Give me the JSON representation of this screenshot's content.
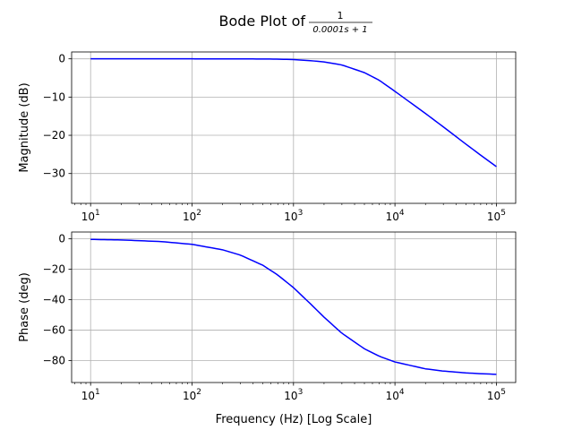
{
  "figure": {
    "title_prefix": "Bode Plot of",
    "title_fraction": {
      "numerator": "1",
      "denominator": "0.0001s + 1"
    }
  },
  "chart_data": [
    {
      "type": "line",
      "name": "magnitude",
      "xlabel": "",
      "ylabel": "Magnitude (dB)",
      "x_scale": "log",
      "xlim": [
        6.5,
        155000
      ],
      "ylim": [
        -37.8,
        1.8
      ],
      "xticks": [
        10,
        100,
        1000,
        10000,
        100000
      ],
      "xtick_labels": [
        {
          "base": "10",
          "exp": "1"
        },
        {
          "base": "10",
          "exp": "2"
        },
        {
          "base": "10",
          "exp": "3"
        },
        {
          "base": "10",
          "exp": "4"
        },
        {
          "base": "10",
          "exp": "5"
        }
      ],
      "yticks": [
        0,
        -10,
        -20,
        -30
      ],
      "ytick_labels": [
        "0",
        "−10",
        "−20",
        "−30"
      ],
      "grid": true,
      "line_color": "#0000ff",
      "series": [
        {
          "x": [
            10,
            20,
            50,
            100,
            200,
            300,
            500,
            700,
            1000,
            1500,
            2000,
            3000,
            5000,
            7000,
            10000,
            20000,
            30000,
            50000,
            70000,
            100000
          ],
          "y": [
            0,
            0,
            0,
            0,
            -0.01,
            -0.02,
            -0.04,
            -0.08,
            -0.2,
            -0.5,
            -0.8,
            -1.6,
            -3.6,
            -5.6,
            -8.5,
            -14.3,
            -17.8,
            -22.3,
            -25.2,
            -28.2
          ]
        }
      ]
    },
    {
      "type": "line",
      "name": "phase",
      "xlabel": "Frequency (Hz) [Log Scale]",
      "ylabel": "Phase (deg)",
      "x_scale": "log",
      "xlim": [
        6.5,
        155000
      ],
      "ylim": [
        -94.5,
        4.5
      ],
      "xticks": [
        10,
        100,
        1000,
        10000,
        100000
      ],
      "xtick_labels": [
        {
          "base": "10",
          "exp": "1"
        },
        {
          "base": "10",
          "exp": "2"
        },
        {
          "base": "10",
          "exp": "3"
        },
        {
          "base": "10",
          "exp": "4"
        },
        {
          "base": "10",
          "exp": "5"
        }
      ],
      "yticks": [
        0,
        -20,
        -40,
        -60,
        -80
      ],
      "ytick_labels": [
        "0",
        "−20",
        "−40",
        "−60",
        "−80"
      ],
      "grid": true,
      "line_color": "#0000ff",
      "series": [
        {
          "x": [
            10,
            20,
            50,
            100,
            200,
            300,
            500,
            700,
            1000,
            1500,
            2000,
            3000,
            5000,
            7000,
            10000,
            20000,
            30000,
            50000,
            70000,
            100000
          ],
          "y": [
            -0.36,
            -0.72,
            -1.8,
            -3.6,
            -7.2,
            -10.7,
            -17.4,
            -23.8,
            -32.1,
            -43.3,
            -51.5,
            -62.1,
            -72.3,
            -77.2,
            -80.98,
            -85.5,
            -86.97,
            -88.18,
            -88.7,
            -89.1
          ]
        }
      ]
    }
  ]
}
